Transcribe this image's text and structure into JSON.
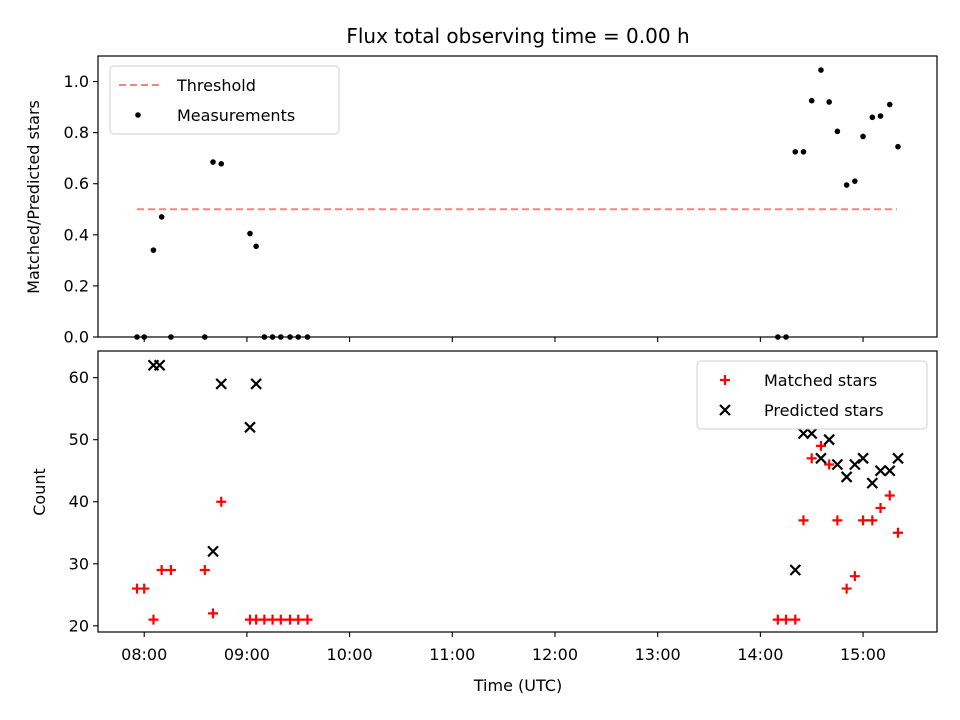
{
  "chart_data": {
    "title": "Flux total observing time = 0.00 h",
    "xlabel": "Time (UTC)",
    "x_ticks": [
      "08:00",
      "09:00",
      "10:00",
      "11:00",
      "12:00",
      "13:00",
      "14:00",
      "15:00"
    ],
    "x_tick_hours": [
      8,
      9,
      10,
      11,
      12,
      13,
      14,
      15
    ],
    "xlim_hours": [
      7.55,
      15.72
    ],
    "charts": [
      {
        "type": "scatter",
        "ylabel": "Matched/Predicted stars",
        "ylim": [
          0,
          1.1
        ],
        "y_ticks": [
          0.0,
          0.2,
          0.4,
          0.6,
          0.8,
          1.0
        ],
        "y_tick_labels": [
          "0.0",
          "0.2",
          "0.4",
          "0.6",
          "0.8",
          "1.0"
        ],
        "legend": "top-left",
        "threshold": {
          "name": "Threshold",
          "y": 0.5,
          "x": [
            7.93,
            15.33
          ],
          "color": "#ff8080"
        },
        "series": [
          {
            "name": "Measurements",
            "marker": "dot",
            "color": "#000000",
            "points": [
              [
                7.93,
                0.0
              ],
              [
                8.0,
                0.0
              ],
              [
                8.09,
                0.34
              ],
              [
                8.17,
                0.47
              ],
              [
                8.26,
                0.0
              ],
              [
                8.59,
                0.0
              ],
              [
                8.67,
                0.685
              ],
              [
                8.75,
                0.678
              ],
              [
                9.03,
                0.405
              ],
              [
                9.09,
                0.355
              ],
              [
                9.17,
                0.0
              ],
              [
                9.25,
                0.0
              ],
              [
                9.33,
                0.0
              ],
              [
                9.42,
                0.0
              ],
              [
                9.5,
                0.0
              ],
              [
                9.59,
                0.0
              ],
              [
                14.17,
                0.0
              ],
              [
                14.25,
                0.0
              ],
              [
                14.34,
                0.725
              ],
              [
                14.42,
                0.725
              ],
              [
                14.5,
                0.925
              ],
              [
                14.59,
                1.045
              ],
              [
                14.67,
                0.92
              ],
              [
                14.75,
                0.805
              ],
              [
                14.84,
                0.595
              ],
              [
                14.92,
                0.61
              ],
              [
                15.0,
                0.785
              ],
              [
                15.09,
                0.86
              ],
              [
                15.17,
                0.865
              ],
              [
                15.26,
                0.91
              ],
              [
                15.34,
                0.745
              ]
            ]
          }
        ]
      },
      {
        "type": "scatter",
        "ylabel": "Count",
        "ylim": [
          19,
          64.3
        ],
        "y_ticks": [
          20,
          30,
          40,
          50,
          60
        ],
        "y_tick_labels": [
          "20",
          "30",
          "40",
          "50",
          "60"
        ],
        "legend": "top-right",
        "series": [
          {
            "name": "Matched stars",
            "marker": "plus",
            "color": "#ff0000",
            "points": [
              [
                7.93,
                26
              ],
              [
                8.0,
                26
              ],
              [
                8.09,
                21
              ],
              [
                8.17,
                29
              ],
              [
                8.26,
                29
              ],
              [
                8.59,
                29
              ],
              [
                8.67,
                22
              ],
              [
                8.75,
                40
              ],
              [
                9.03,
                21
              ],
              [
                9.09,
                21
              ],
              [
                9.17,
                21
              ],
              [
                9.25,
                21
              ],
              [
                9.33,
                21
              ],
              [
                9.42,
                21
              ],
              [
                9.5,
                21
              ],
              [
                9.59,
                21
              ],
              [
                14.17,
                21
              ],
              [
                14.25,
                21
              ],
              [
                14.34,
                21
              ],
              [
                14.42,
                37
              ],
              [
                14.5,
                47
              ],
              [
                14.59,
                49
              ],
              [
                14.67,
                46
              ],
              [
                14.75,
                37
              ],
              [
                14.84,
                26
              ],
              [
                14.92,
                28
              ],
              [
                15.0,
                37
              ],
              [
                15.09,
                37
              ],
              [
                15.17,
                39
              ],
              [
                15.26,
                41
              ],
              [
                15.34,
                35
              ]
            ]
          },
          {
            "name": "Predicted stars",
            "marker": "x",
            "color": "#000000",
            "points": [
              [
                8.09,
                62
              ],
              [
                8.15,
                62
              ],
              [
                8.67,
                32
              ],
              [
                8.75,
                59
              ],
              [
                9.03,
                52
              ],
              [
                9.09,
                59
              ],
              [
                14.34,
                29
              ],
              [
                14.42,
                51
              ],
              [
                14.5,
                51
              ],
              [
                14.59,
                47
              ],
              [
                14.67,
                50
              ],
              [
                14.75,
                46
              ],
              [
                14.84,
                44
              ],
              [
                14.92,
                46
              ],
              [
                15.0,
                47
              ],
              [
                15.09,
                43
              ],
              [
                15.17,
                45
              ],
              [
                15.26,
                45
              ],
              [
                15.34,
                47
              ]
            ]
          }
        ]
      }
    ]
  }
}
